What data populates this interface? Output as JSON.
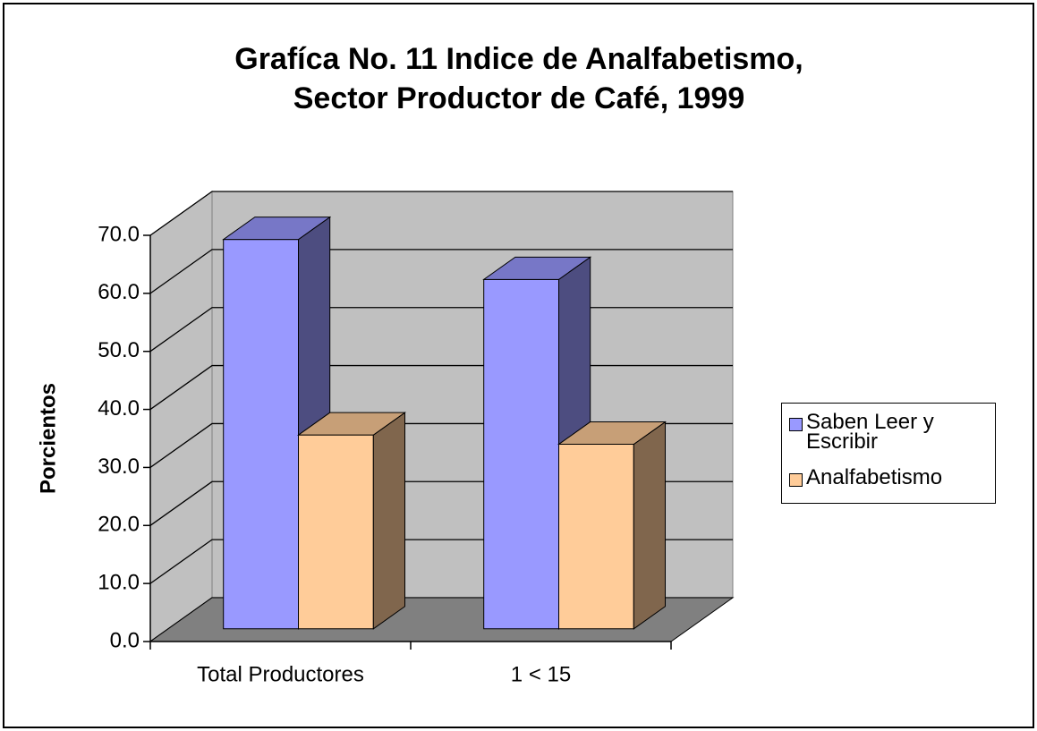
{
  "chart_data": {
    "type": "bar3d",
    "title": [
      "Grafíca No. 11 Indice de Analfabetismo,",
      "Sector Productor de Café, 1999"
    ],
    "y_label": "Porcientos",
    "categories": [
      "Total Productores",
      "1 < 15"
    ],
    "series": [
      {
        "name": "Saben Leer y Escribir",
        "color": "#9999ff",
        "values": [
          67.1,
          60.2
        ]
      },
      {
        "name": "Analfabetismo",
        "color": "#ffcc99",
        "values": [
          33.4,
          31.8
        ]
      }
    ],
    "ylim": [
      0,
      70
    ],
    "yticks": [
      {
        "value": 0,
        "label": "0.0"
      },
      {
        "value": 10,
        "label": "10.0"
      },
      {
        "value": 20,
        "label": "20.0"
      },
      {
        "value": 30,
        "label": "30.0"
      },
      {
        "value": 40,
        "label": "40.0"
      },
      {
        "value": 50,
        "label": "50.0"
      },
      {
        "value": 60,
        "label": "60.0"
      },
      {
        "value": 70,
        "label": "70.0"
      }
    ],
    "grid": true,
    "legend": "right"
  }
}
